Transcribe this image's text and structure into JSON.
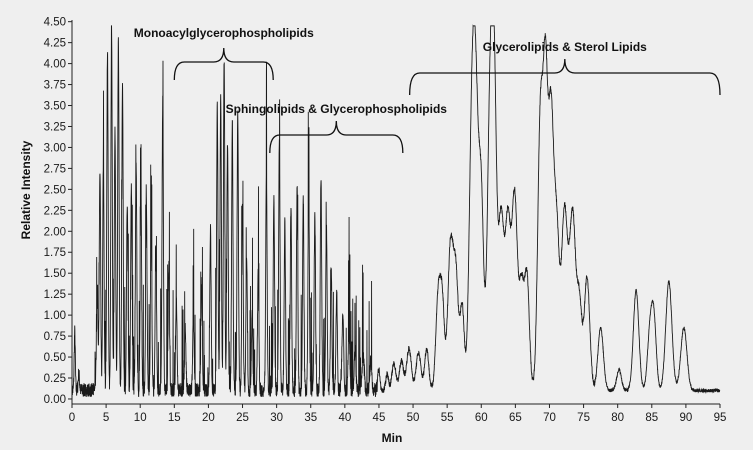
{
  "chart_data": {
    "type": "line",
    "title": "",
    "xlabel": "Min",
    "ylabel": "Relative Intensity",
    "xlim": [
      0,
      95
    ],
    "ylim": [
      -0.06,
      4.52
    ],
    "x_ticks": [
      0,
      5,
      10,
      15,
      20,
      25,
      30,
      35,
      40,
      45,
      50,
      55,
      60,
      65,
      70,
      75,
      80,
      85,
      90,
      95
    ],
    "y_ticks": [
      "0.00",
      "0.25",
      "0.50",
      "0.75",
      "1.00",
      "1.25",
      "1.50",
      "1.75",
      "2.00",
      "2.25",
      "2.50",
      "2.75",
      "3.00",
      "3.25",
      "3.50",
      "3.75",
      "4.00",
      "4.25",
      "4.50"
    ],
    "grid": false,
    "line_color": "#1a1a1a",
    "baseline": 0.1,
    "series": [
      {
        "peaks": [
          [
            0.4,
            0.8,
            0.08
          ],
          [
            1.0,
            0.3,
            0.1
          ],
          [
            3.7,
            1.2,
            0.12
          ],
          [
            4.1,
            2.7,
            0.1
          ],
          [
            4.6,
            2.85,
            0.1
          ],
          [
            5.2,
            4.15,
            0.1
          ],
          [
            5.8,
            4.42,
            0.1
          ],
          [
            6.3,
            3.2,
            0.1
          ],
          [
            6.8,
            4.3,
            0.1
          ],
          [
            7.4,
            3.78,
            0.1
          ],
          [
            8.1,
            2.35,
            0.1
          ],
          [
            8.7,
            2.5,
            0.1
          ],
          [
            9.4,
            2.85,
            0.1
          ],
          [
            10.1,
            2.6,
            0.1
          ],
          [
            10.9,
            2.35,
            0.1
          ],
          [
            11.6,
            2.1,
            0.1
          ],
          [
            12.3,
            1.8,
            0.1
          ],
          [
            13.3,
            3.55,
            0.1
          ],
          [
            14.2,
            1.6,
            0.1
          ],
          [
            15.3,
            1.2,
            0.1
          ],
          [
            16.6,
            0.85,
            0.1
          ],
          [
            17.8,
            1.05,
            0.1
          ],
          [
            19.0,
            1.4,
            0.1
          ],
          [
            20.3,
            2.0,
            0.1
          ],
          [
            21.3,
            3.5,
            0.1
          ],
          [
            21.8,
            3.6,
            0.1
          ],
          [
            22.3,
            4.05,
            0.1
          ],
          [
            22.8,
            3.1,
            0.1
          ],
          [
            23.5,
            3.3,
            0.1
          ],
          [
            24.3,
            3.4,
            0.1
          ],
          [
            25.0,
            2.3,
            0.1
          ],
          [
            25.6,
            1.7,
            0.1
          ],
          [
            26.4,
            1.0,
            0.1
          ],
          [
            27.3,
            1.5,
            0.1
          ],
          [
            28.5,
            2.78,
            0.1
          ],
          [
            29.6,
            2.35,
            0.1
          ],
          [
            30.4,
            3.1,
            0.1
          ],
          [
            31.2,
            2.1,
            0.1
          ],
          [
            32.1,
            2.3,
            0.1
          ],
          [
            33.0,
            2.5,
            0.1
          ],
          [
            33.9,
            2.35,
            0.1
          ],
          [
            34.7,
            2.55,
            0.1
          ],
          [
            35.6,
            2.2,
            0.1
          ],
          [
            36.5,
            2.65,
            0.1
          ],
          [
            37.3,
            2.1,
            0.1
          ],
          [
            38.0,
            1.6,
            0.1
          ],
          [
            38.8,
            1.3,
            0.1
          ],
          [
            39.7,
            1.0,
            0.12
          ],
          [
            40.6,
            0.8,
            0.12
          ],
          [
            41.5,
            0.6,
            0.12
          ],
          [
            42.7,
            0.5,
            0.15
          ],
          [
            43.8,
            0.45,
            0.15
          ],
          [
            45.0,
            0.35,
            0.15
          ],
          [
            46.2,
            0.3,
            0.2
          ],
          [
            47.2,
            0.42,
            0.3
          ],
          [
            48.3,
            0.45,
            0.3
          ],
          [
            49.4,
            0.6,
            0.35
          ],
          [
            50.8,
            0.55,
            0.35
          ],
          [
            52.0,
            0.6,
            0.3
          ],
          [
            53.7,
            1.25,
            0.35
          ],
          [
            54.3,
            1.05,
            0.3
          ],
          [
            55.5,
            1.85,
            0.4
          ],
          [
            56.3,
            1.4,
            0.35
          ],
          [
            57.2,
            1.1,
            0.3
          ],
          [
            58.6,
            2.9,
            0.4
          ],
          [
            59.2,
            3.15,
            0.4
          ],
          [
            60.0,
            2.3,
            0.35
          ],
          [
            61.3,
            3.45,
            0.4
          ],
          [
            61.9,
            3.3,
            0.35
          ],
          [
            62.9,
            2.15,
            0.4
          ],
          [
            63.9,
            2.1,
            0.4
          ],
          [
            64.9,
            2.4,
            0.4
          ],
          [
            65.9,
            1.3,
            0.35
          ],
          [
            66.7,
            1.45,
            0.35
          ],
          [
            68.7,
            3.5,
            0.4
          ],
          [
            69.4,
            2.9,
            0.3
          ],
          [
            70.2,
            3.55,
            0.45
          ],
          [
            71.1,
            1.7,
            0.35
          ],
          [
            72.2,
            2.25,
            0.45
          ],
          [
            73.4,
            2.2,
            0.45
          ],
          [
            74.4,
            1.1,
            0.35
          ],
          [
            75.5,
            1.45,
            0.4
          ],
          [
            77.5,
            0.85,
            0.4
          ],
          [
            80.2,
            0.35,
            0.35
          ],
          [
            82.7,
            1.3,
            0.4
          ],
          [
            84.7,
            0.75,
            0.35
          ],
          [
            85.3,
            0.95,
            0.35
          ],
          [
            87.5,
            1.4,
            0.45
          ],
          [
            89.7,
            0.85,
            0.45
          ]
        ]
      }
    ],
    "annotations": [
      {
        "text": "Monoacylglycerophospholipids",
        "x_start": 15,
        "x_end": 29.5
      },
      {
        "text": "Sphingolipids & Glycerophospholipids",
        "x_start": 29,
        "x_end": 48.5
      },
      {
        "text": "Glycerolipids & Sterol Lipids",
        "x_start": 49.5,
        "x_end": 95
      }
    ]
  }
}
